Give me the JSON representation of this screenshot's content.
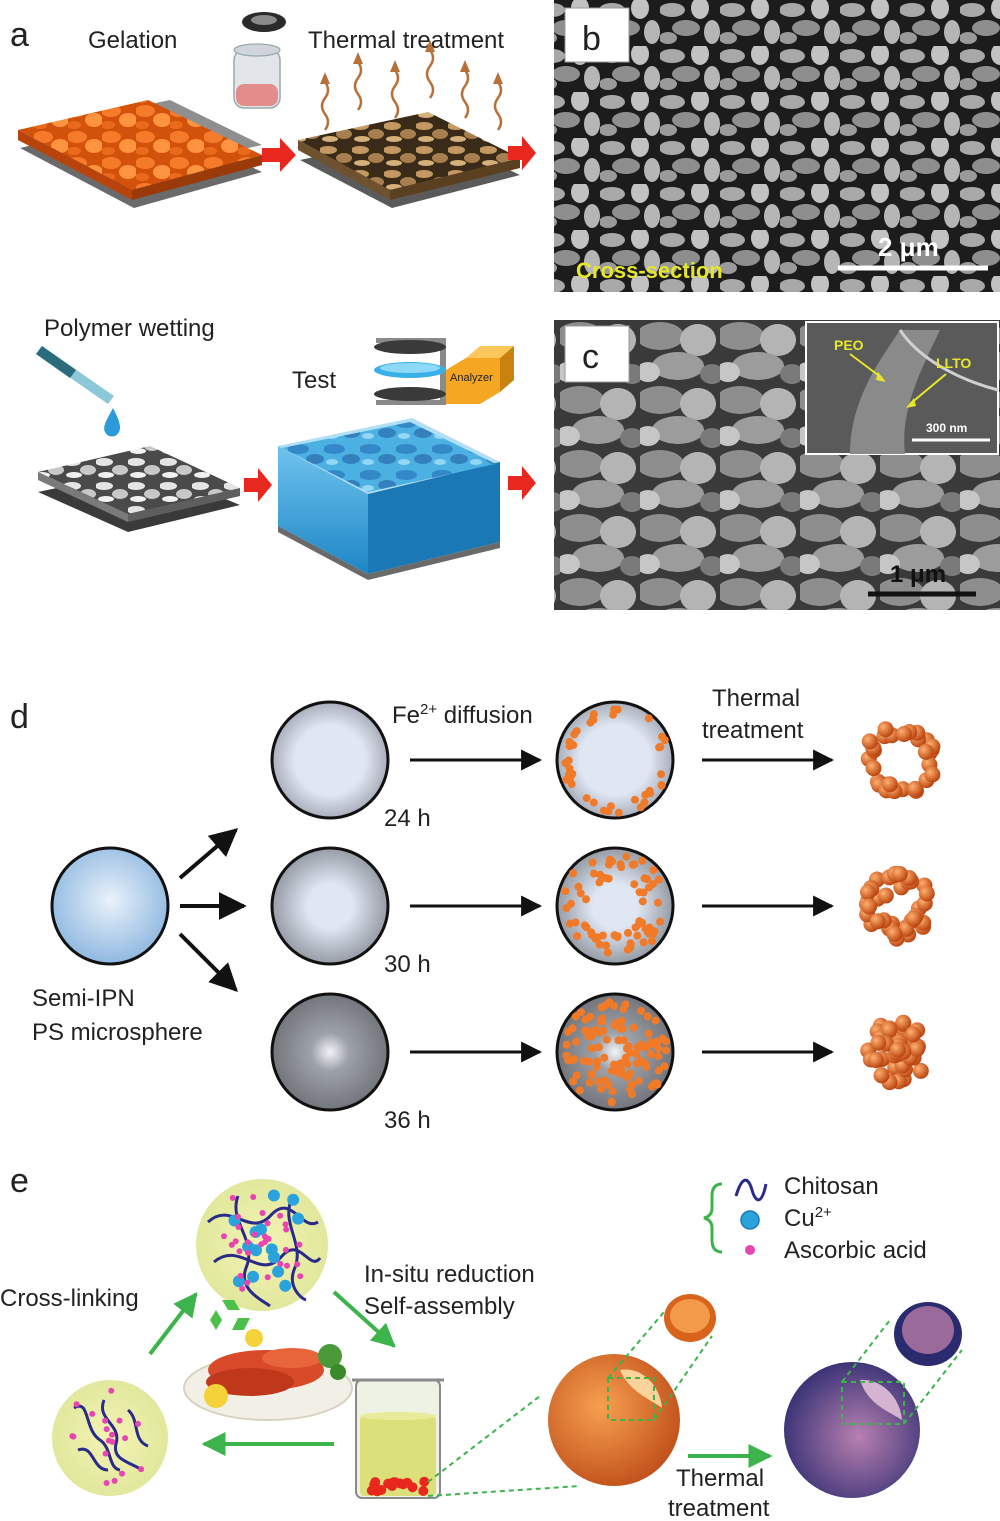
{
  "panel_a": {
    "letter": "a",
    "gelation": "Gelation",
    "thermal_treatment": "Thermal treatment",
    "polymer_wetting": "Polymer wetting",
    "test": "Test",
    "analyzer": "Analyzer"
  },
  "panel_b": {
    "letter": "b",
    "scale": "2 μm",
    "caption": "Cross-section"
  },
  "panel_c": {
    "letter": "c",
    "scale": "1 μm",
    "inset_peo": "PEO",
    "inset_llto": "LLTO",
    "inset_scale": "300 nm"
  },
  "panel_d": {
    "letter": "d",
    "fe_label": "Fe",
    "fe_sup": "2+",
    "fe_rest": " diffusion",
    "thermal_line1": "Thermal",
    "thermal_line2": "treatment",
    "times": [
      "24 h",
      "30 h",
      "36 h"
    ],
    "source_line1": "Semi-IPN",
    "source_line2": "PS microsphere"
  },
  "panel_e": {
    "letter": "e",
    "legend_chitosan": "Chitosan",
    "legend_cu": "Cu",
    "legend_cu_sup": "2+",
    "legend_ascorbic": "Ascorbic acid",
    "crosslinking": "Cross-linking",
    "insitu": "In-situ reduction",
    "selfassembly": "Self-assembly",
    "thermal_line1": "Thermal",
    "thermal_line2": "treatment"
  },
  "colors": {
    "orange": "#e8621a",
    "tan": "#b8925a",
    "blue": "#2aa3dc",
    "arrow_red": "#e8281e",
    "green": "#3cb44b",
    "sem_yellow": "#e6e62a",
    "navy": "#2a2a8a",
    "magenta": "#e845b0"
  }
}
